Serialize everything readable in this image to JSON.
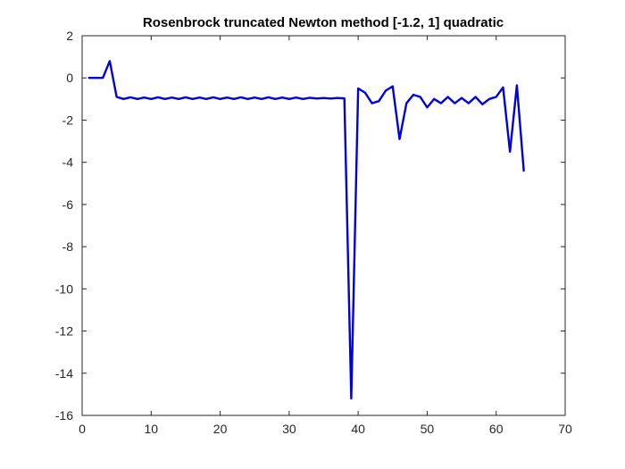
{
  "chart_data": {
    "type": "line",
    "title": "Rosenbrock truncated Newton method [-1.2, 1] quadratic",
    "xlabel": "",
    "ylabel": "",
    "xlim": [
      0,
      70
    ],
    "ylim": [
      -16,
      2
    ],
    "xticks": [
      0,
      10,
      20,
      30,
      40,
      50,
      60,
      70
    ],
    "yticks": [
      2,
      0,
      -2,
      -4,
      -6,
      -8,
      -10,
      -12,
      -14,
      -16
    ],
    "grid": false,
    "line_color": "#0000dd",
    "series": [
      {
        "x": [
          1,
          2,
          3,
          4,
          5,
          6,
          7,
          8,
          9,
          10,
          11,
          12,
          13,
          14,
          15,
          16,
          17,
          18,
          19,
          20,
          21,
          22,
          23,
          24,
          25,
          26,
          27,
          28,
          29,
          30,
          31,
          32,
          33,
          34,
          35,
          36,
          37,
          38,
          39,
          40,
          41,
          42,
          43,
          44,
          45,
          46,
          47,
          48,
          49,
          50,
          51,
          52,
          53,
          54,
          55,
          56,
          57,
          58,
          59,
          60,
          61,
          62,
          63,
          64
        ],
        "y": [
          0,
          0,
          0,
          0.8,
          -0.9,
          -1.0,
          -0.92,
          -1.0,
          -0.93,
          -1.0,
          -0.92,
          -1.0,
          -0.93,
          -1.0,
          -0.92,
          -1.0,
          -0.93,
          -1.0,
          -0.92,
          -1.0,
          -0.93,
          -1.0,
          -0.92,
          -1.0,
          -0.93,
          -1.0,
          -0.92,
          -1.0,
          -0.93,
          -1.0,
          -0.93,
          -1.0,
          -0.94,
          -0.98,
          -0.95,
          -0.98,
          -0.95,
          -0.97,
          -15.2,
          -0.5,
          -0.7,
          -1.2,
          -1.1,
          -0.6,
          -0.4,
          -2.9,
          -1.2,
          -0.8,
          -0.9,
          -1.4,
          -1.0,
          -1.2,
          -0.9,
          -1.2,
          -0.95,
          -1.2,
          -0.9,
          -1.25,
          -1.0,
          -0.9,
          -0.45,
          -3.5,
          -0.35,
          -4.4
        ]
      }
    ]
  }
}
